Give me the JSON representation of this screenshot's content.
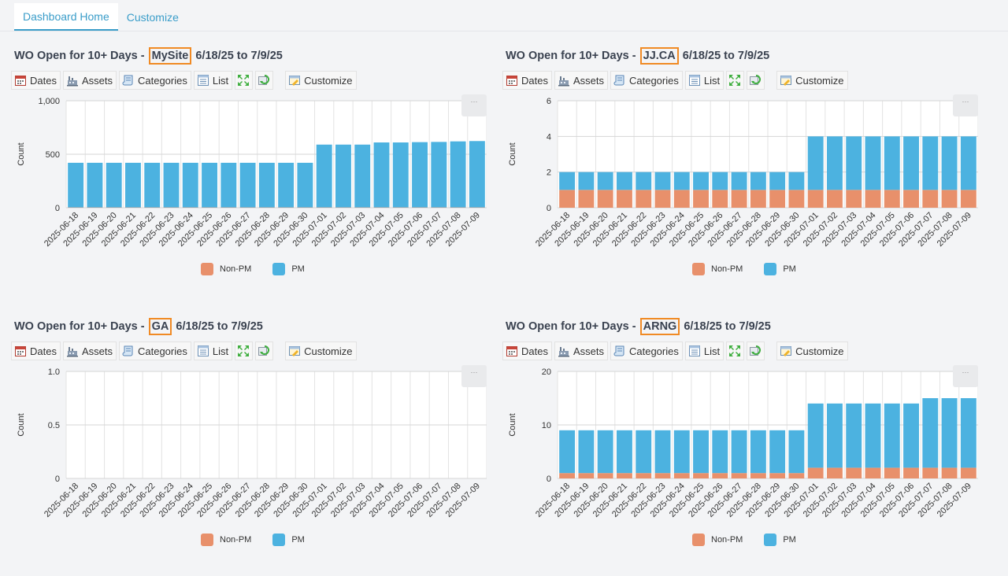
{
  "tabs": [
    {
      "label": "Dashboard Home",
      "active": true
    },
    {
      "label": "Customize",
      "active": false
    }
  ],
  "toolbar": {
    "dates": "Dates",
    "assets": "Assets",
    "categories": "Categories",
    "list": "List",
    "customize": "Customize"
  },
  "menu_glyph": "···",
  "colors": {
    "non_pm": "#e8906b",
    "pm": "#4cb2e0",
    "accent": "#3a9dc9",
    "highlight": "#f08a24"
  },
  "panels": [
    {
      "title_prefix": "WO Open for 10+ Days - ",
      "site": "MySite",
      "title_suffix": " 6/18/25 to 7/9/25",
      "chart_data": {
        "type": "bar",
        "stacked": true,
        "ylabel": "Count",
        "ylim": [
          0,
          1000
        ],
        "yticks": [
          "0",
          "500",
          "1,000"
        ],
        "ytick_values": [
          0,
          500,
          1000
        ],
        "categories": [
          "2025-06-18",
          "2025-06-19",
          "2025-06-20",
          "2025-06-21",
          "2025-06-22",
          "2025-06-23",
          "2025-06-24",
          "2025-06-25",
          "2025-06-26",
          "2025-06-27",
          "2025-06-28",
          "2025-06-29",
          "2025-06-30",
          "2025-07-01",
          "2025-07-02",
          "2025-07-03",
          "2025-07-04",
          "2025-07-05",
          "2025-07-06",
          "2025-07-07",
          "2025-07-08",
          "2025-07-09"
        ],
        "series": [
          {
            "name": "Non-PM",
            "values": [
              3,
              3,
              3,
              3,
              3,
              3,
              3,
              3,
              3,
              3,
              3,
              3,
              3,
              3,
              3,
              3,
              3,
              3,
              3,
              3,
              3,
              3
            ]
          },
          {
            "name": "PM",
            "values": [
              417,
              417,
              417,
              417,
              417,
              417,
              417,
              417,
              417,
              417,
              417,
              417,
              417,
              587,
              587,
              587,
              607,
              607,
              610,
              612,
              617,
              620
            ]
          }
        ],
        "legend": "bottom"
      }
    },
    {
      "title_prefix": "WO Open for 10+ Days - ",
      "site": "JJ.CA",
      "title_suffix": " 6/18/25 to 7/9/25",
      "chart_data": {
        "type": "bar",
        "stacked": true,
        "ylabel": "Count",
        "ylim": [
          0,
          6
        ],
        "yticks": [
          "0",
          "2",
          "4",
          "6"
        ],
        "ytick_values": [
          0,
          2,
          4,
          6
        ],
        "categories": [
          "2025-06-18",
          "2025-06-19",
          "2025-06-20",
          "2025-06-21",
          "2025-06-22",
          "2025-06-23",
          "2025-06-24",
          "2025-06-25",
          "2025-06-26",
          "2025-06-27",
          "2025-06-28",
          "2025-06-29",
          "2025-06-30",
          "2025-07-01",
          "2025-07-02",
          "2025-07-03",
          "2025-07-04",
          "2025-07-05",
          "2025-07-06",
          "2025-07-07",
          "2025-07-08",
          "2025-07-09"
        ],
        "series": [
          {
            "name": "Non-PM",
            "values": [
              1,
              1,
              1,
              1,
              1,
              1,
              1,
              1,
              1,
              1,
              1,
              1,
              1,
              1,
              1,
              1,
              1,
              1,
              1,
              1,
              1,
              1
            ]
          },
          {
            "name": "PM",
            "values": [
              1,
              1,
              1,
              1,
              1,
              1,
              1,
              1,
              1,
              1,
              1,
              1,
              1,
              3,
              3,
              3,
              3,
              3,
              3,
              3,
              3,
              3
            ]
          }
        ],
        "legend": "bottom"
      }
    },
    {
      "title_prefix": "WO Open for 10+ Days - ",
      "site": "GA",
      "title_suffix": " 6/18/25 to 7/9/25",
      "chart_data": {
        "type": "bar",
        "stacked": true,
        "ylabel": "Count",
        "ylim": [
          0,
          1
        ],
        "yticks": [
          "0",
          "0.5",
          "1.0"
        ],
        "ytick_values": [
          0,
          0.5,
          1
        ],
        "categories": [
          "2025-06-18",
          "2025-06-19",
          "2025-06-20",
          "2025-06-21",
          "2025-06-22",
          "2025-06-23",
          "2025-06-24",
          "2025-06-25",
          "2025-06-26",
          "2025-06-27",
          "2025-06-28",
          "2025-06-29",
          "2025-06-30",
          "2025-07-01",
          "2025-07-02",
          "2025-07-03",
          "2025-07-04",
          "2025-07-05",
          "2025-07-06",
          "2025-07-07",
          "2025-07-08",
          "2025-07-09"
        ],
        "series": [
          {
            "name": "Non-PM",
            "values": [
              0,
              0,
              0,
              0,
              0,
              0,
              0,
              0,
              0,
              0,
              0,
              0,
              0,
              0,
              0,
              0,
              0,
              0,
              0,
              0,
              0,
              0
            ]
          },
          {
            "name": "PM",
            "values": [
              0,
              0,
              0,
              0,
              0,
              0,
              0,
              0,
              0,
              0,
              0,
              0,
              0,
              0,
              0,
              0,
              0,
              0,
              0,
              0,
              0,
              0
            ]
          }
        ],
        "legend": "bottom"
      }
    },
    {
      "title_prefix": "WO Open for 10+ Days - ",
      "site": "ARNG",
      "title_suffix": " 6/18/25 to 7/9/25",
      "chart_data": {
        "type": "bar",
        "stacked": true,
        "ylabel": "Count",
        "ylim": [
          0,
          20
        ],
        "yticks": [
          "0",
          "10",
          "20"
        ],
        "ytick_values": [
          0,
          10,
          20
        ],
        "categories": [
          "2025-06-18",
          "2025-06-19",
          "2025-06-20",
          "2025-06-21",
          "2025-06-22",
          "2025-06-23",
          "2025-06-24",
          "2025-06-25",
          "2025-06-26",
          "2025-06-27",
          "2025-06-28",
          "2025-06-29",
          "2025-06-30",
          "2025-07-01",
          "2025-07-02",
          "2025-07-03",
          "2025-07-04",
          "2025-07-05",
          "2025-07-06",
          "2025-07-07",
          "2025-07-08",
          "2025-07-09"
        ],
        "series": [
          {
            "name": "Non-PM",
            "values": [
              1,
              1,
              1,
              1,
              1,
              1,
              1,
              1,
              1,
              1,
              1,
              1,
              1,
              2,
              2,
              2,
              2,
              2,
              2,
              2,
              2,
              2
            ]
          },
          {
            "name": "PM",
            "values": [
              8,
              8,
              8,
              8,
              8,
              8,
              8,
              8,
              8,
              8,
              8,
              8,
              8,
              12,
              12,
              12,
              12,
              12,
              12,
              13,
              13,
              13
            ]
          }
        ],
        "legend": "bottom"
      }
    }
  ]
}
